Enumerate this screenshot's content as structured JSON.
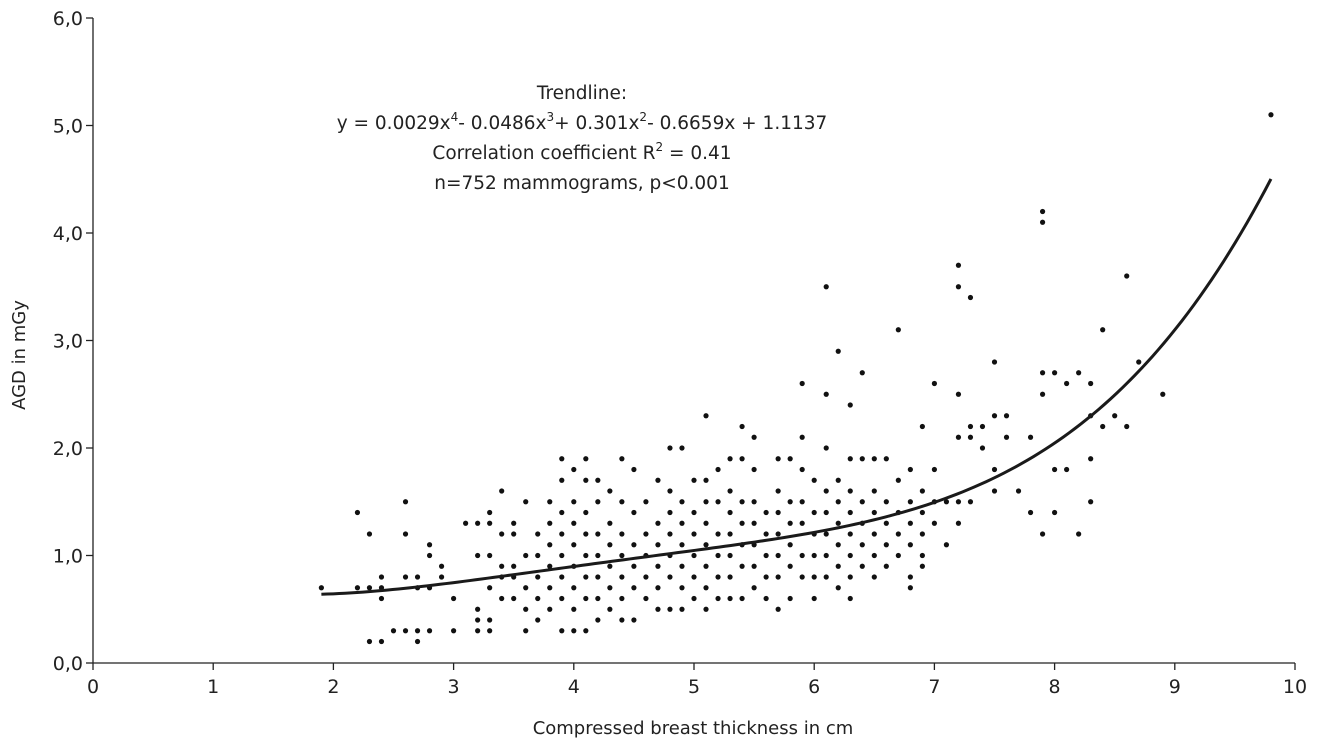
{
  "chart_data": {
    "type": "scatter",
    "xlabel": "Compressed breast thickness in cm",
    "ylabel": "AGD in mGy",
    "xlim": [
      0,
      10
    ],
    "ylim": [
      0,
      6
    ],
    "x_ticks": [
      "0",
      "1",
      "2",
      "3",
      "4",
      "5",
      "6",
      "7",
      "8",
      "9",
      "10"
    ],
    "y_ticks": [
      "0,0",
      "1,0",
      "2,0",
      "3,0",
      "4,0",
      "5,0",
      "6,0"
    ],
    "grid": false,
    "annotation": {
      "line1": "Trendline:",
      "eq_parts": [
        "y = 0.0029x",
        "4",
        "- 0.0486x",
        "3",
        "+ 0.301x",
        "2",
        "- 0.6659x + 1.1137"
      ],
      "r2_prefix": "Correlation coefficient R",
      "r2_sup": "2",
      "r2_suffix": " = 0.41",
      "line4": "n=752 mammograms, p<0.001"
    },
    "trendline": {
      "type": "polynomial",
      "coefficients": {
        "a4": 0.0029,
        "a3": -0.0486,
        "a2": 0.301,
        "a1": -0.6659,
        "a0": 1.1137
      },
      "x_range": [
        1.9,
        9.8
      ]
    },
    "points": [
      [
        1.9,
        0.7
      ],
      [
        2.2,
        1.4
      ],
      [
        2.2,
        0.7
      ],
      [
        2.3,
        1.2
      ],
      [
        2.3,
        0.7
      ],
      [
        2.3,
        0.2
      ],
      [
        2.4,
        0.8
      ],
      [
        2.4,
        0.7
      ],
      [
        2.4,
        0.6
      ],
      [
        2.4,
        0.2
      ],
      [
        2.5,
        0.3
      ],
      [
        2.6,
        1.5
      ],
      [
        2.6,
        1.2
      ],
      [
        2.6,
        0.8
      ],
      [
        2.6,
        0.3
      ],
      [
        2.7,
        0.8
      ],
      [
        2.7,
        0.7
      ],
      [
        2.7,
        0.3
      ],
      [
        2.7,
        0.2
      ],
      [
        2.8,
        1.1
      ],
      [
        2.8,
        1.0
      ],
      [
        2.8,
        0.7
      ],
      [
        2.8,
        0.3
      ],
      [
        2.9,
        0.9
      ],
      [
        2.9,
        0.8
      ],
      [
        3.0,
        0.6
      ],
      [
        3.0,
        0.3
      ],
      [
        3.1,
        1.3
      ],
      [
        3.2,
        1.3
      ],
      [
        3.2,
        1.0
      ],
      [
        3.2,
        0.5
      ],
      [
        3.2,
        0.4
      ],
      [
        3.2,
        0.3
      ],
      [
        3.3,
        1.4
      ],
      [
        3.3,
        1.3
      ],
      [
        3.3,
        1.0
      ],
      [
        3.3,
        0.7
      ],
      [
        3.3,
        0.4
      ],
      [
        3.3,
        0.3
      ],
      [
        3.4,
        1.6
      ],
      [
        3.4,
        1.2
      ],
      [
        3.4,
        0.9
      ],
      [
        3.4,
        0.8
      ],
      [
        3.4,
        0.6
      ],
      [
        3.5,
        1.3
      ],
      [
        3.5,
        1.2
      ],
      [
        3.5,
        0.9
      ],
      [
        3.5,
        0.8
      ],
      [
        3.5,
        0.6
      ],
      [
        3.6,
        1.5
      ],
      [
        3.6,
        1.0
      ],
      [
        3.6,
        0.7
      ],
      [
        3.6,
        0.5
      ],
      [
        3.6,
        0.3
      ],
      [
        3.7,
        1.2
      ],
      [
        3.7,
        1.0
      ],
      [
        3.7,
        0.8
      ],
      [
        3.7,
        0.6
      ],
      [
        3.7,
        0.4
      ],
      [
        3.8,
        1.5
      ],
      [
        3.8,
        1.3
      ],
      [
        3.8,
        1.1
      ],
      [
        3.8,
        0.9
      ],
      [
        3.8,
        0.7
      ],
      [
        3.8,
        0.5
      ],
      [
        3.9,
        1.9
      ],
      [
        3.9,
        1.7
      ],
      [
        3.9,
        1.4
      ],
      [
        3.9,
        1.2
      ],
      [
        3.9,
        1.0
      ],
      [
        3.9,
        0.8
      ],
      [
        3.9,
        0.6
      ],
      [
        3.9,
        0.3
      ],
      [
        4.0,
        1.8
      ],
      [
        4.0,
        1.5
      ],
      [
        4.0,
        1.3
      ],
      [
        4.0,
        1.1
      ],
      [
        4.0,
        0.9
      ],
      [
        4.0,
        0.7
      ],
      [
        4.0,
        0.5
      ],
      [
        4.0,
        0.3
      ],
      [
        4.1,
        1.9
      ],
      [
        4.1,
        1.7
      ],
      [
        4.1,
        1.4
      ],
      [
        4.1,
        1.2
      ],
      [
        4.1,
        1.0
      ],
      [
        4.1,
        0.8
      ],
      [
        4.1,
        0.6
      ],
      [
        4.1,
        0.3
      ],
      [
        4.2,
        1.7
      ],
      [
        4.2,
        1.5
      ],
      [
        4.2,
        1.2
      ],
      [
        4.2,
        1.0
      ],
      [
        4.2,
        0.8
      ],
      [
        4.2,
        0.6
      ],
      [
        4.2,
        0.4
      ],
      [
        4.3,
        1.6
      ],
      [
        4.3,
        1.3
      ],
      [
        4.3,
        1.1
      ],
      [
        4.3,
        0.9
      ],
      [
        4.3,
        0.7
      ],
      [
        4.3,
        0.5
      ],
      [
        4.4,
        1.9
      ],
      [
        4.4,
        1.5
      ],
      [
        4.4,
        1.2
      ],
      [
        4.4,
        1.0
      ],
      [
        4.4,
        0.8
      ],
      [
        4.4,
        0.6
      ],
      [
        4.4,
        0.4
      ],
      [
        4.5,
        1.8
      ],
      [
        4.5,
        1.4
      ],
      [
        4.5,
        1.1
      ],
      [
        4.5,
        0.9
      ],
      [
        4.5,
        0.7
      ],
      [
        4.5,
        0.4
      ],
      [
        4.6,
        1.5
      ],
      [
        4.6,
        1.2
      ],
      [
        4.6,
        1.0
      ],
      [
        4.6,
        0.8
      ],
      [
        4.6,
        0.6
      ],
      [
        4.7,
        1.7
      ],
      [
        4.7,
        1.3
      ],
      [
        4.7,
        1.1
      ],
      [
        4.7,
        0.9
      ],
      [
        4.7,
        0.7
      ],
      [
        4.7,
        0.5
      ],
      [
        4.8,
        2.0
      ],
      [
        4.8,
        1.6
      ],
      [
        4.8,
        1.4
      ],
      [
        4.8,
        1.2
      ],
      [
        4.8,
        1.0
      ],
      [
        4.8,
        0.8
      ],
      [
        4.8,
        0.5
      ],
      [
        4.9,
        2.0
      ],
      [
        4.9,
        1.5
      ],
      [
        4.9,
        1.3
      ],
      [
        4.9,
        1.1
      ],
      [
        4.9,
        0.9
      ],
      [
        4.9,
        0.7
      ],
      [
        4.9,
        0.5
      ],
      [
        5.0,
        1.7
      ],
      [
        5.0,
        1.4
      ],
      [
        5.0,
        1.2
      ],
      [
        5.0,
        1.0
      ],
      [
        5.0,
        0.8
      ],
      [
        5.0,
        0.6
      ],
      [
        5.1,
        2.3
      ],
      [
        5.1,
        1.7
      ],
      [
        5.1,
        1.5
      ],
      [
        5.1,
        1.3
      ],
      [
        5.1,
        1.1
      ],
      [
        5.1,
        0.9
      ],
      [
        5.1,
        0.7
      ],
      [
        5.1,
        0.5
      ],
      [
        5.2,
        1.8
      ],
      [
        5.2,
        1.5
      ],
      [
        5.2,
        1.2
      ],
      [
        5.2,
        1.0
      ],
      [
        5.2,
        0.8
      ],
      [
        5.2,
        0.6
      ],
      [
        5.3,
        1.9
      ],
      [
        5.3,
        1.6
      ],
      [
        5.3,
        1.4
      ],
      [
        5.3,
        1.2
      ],
      [
        5.3,
        1.0
      ],
      [
        5.3,
        0.8
      ],
      [
        5.3,
        0.6
      ],
      [
        5.4,
        2.2
      ],
      [
        5.4,
        1.9
      ],
      [
        5.4,
        1.5
      ],
      [
        5.4,
        1.3
      ],
      [
        5.4,
        1.1
      ],
      [
        5.4,
        0.9
      ],
      [
        5.4,
        0.6
      ],
      [
        5.5,
        2.1
      ],
      [
        5.5,
        1.8
      ],
      [
        5.5,
        1.5
      ],
      [
        5.5,
        1.3
      ],
      [
        5.5,
        1.1
      ],
      [
        5.5,
        0.9
      ],
      [
        5.5,
        0.7
      ],
      [
        5.6,
        1.4
      ],
      [
        5.6,
        1.2
      ],
      [
        5.6,
        1.0
      ],
      [
        5.6,
        0.8
      ],
      [
        5.6,
        0.6
      ],
      [
        5.7,
        1.9
      ],
      [
        5.7,
        1.6
      ],
      [
        5.7,
        1.4
      ],
      [
        5.7,
        1.2
      ],
      [
        5.7,
        1.0
      ],
      [
        5.7,
        0.8
      ],
      [
        5.7,
        0.5
      ],
      [
        5.8,
        1.9
      ],
      [
        5.8,
        1.5
      ],
      [
        5.8,
        1.3
      ],
      [
        5.8,
        1.1
      ],
      [
        5.8,
        0.9
      ],
      [
        5.8,
        0.6
      ],
      [
        5.9,
        2.6
      ],
      [
        5.9,
        2.1
      ],
      [
        5.9,
        1.8
      ],
      [
        5.9,
        1.5
      ],
      [
        5.9,
        1.3
      ],
      [
        5.9,
        1.0
      ],
      [
        5.9,
        0.8
      ],
      [
        6.0,
        1.7
      ],
      [
        6.0,
        1.4
      ],
      [
        6.0,
        1.2
      ],
      [
        6.0,
        1.0
      ],
      [
        6.0,
        0.8
      ],
      [
        6.0,
        0.6
      ],
      [
        6.1,
        3.5
      ],
      [
        6.1,
        2.5
      ],
      [
        6.1,
        2.0
      ],
      [
        6.1,
        1.6
      ],
      [
        6.1,
        1.4
      ],
      [
        6.1,
        1.2
      ],
      [
        6.1,
        1.0
      ],
      [
        6.1,
        0.8
      ],
      [
        6.2,
        2.9
      ],
      [
        6.2,
        1.7
      ],
      [
        6.2,
        1.5
      ],
      [
        6.2,
        1.3
      ],
      [
        6.2,
        1.1
      ],
      [
        6.2,
        0.9
      ],
      [
        6.2,
        0.7
      ],
      [
        6.3,
        2.4
      ],
      [
        6.3,
        1.9
      ],
      [
        6.3,
        1.6
      ],
      [
        6.3,
        1.4
      ],
      [
        6.3,
        1.2
      ],
      [
        6.3,
        1.0
      ],
      [
        6.3,
        0.8
      ],
      [
        6.3,
        0.6
      ],
      [
        6.4,
        2.7
      ],
      [
        6.4,
        1.9
      ],
      [
        6.4,
        1.5
      ],
      [
        6.4,
        1.3
      ],
      [
        6.4,
        1.1
      ],
      [
        6.4,
        0.9
      ],
      [
        6.5,
        1.9
      ],
      [
        6.5,
        1.6
      ],
      [
        6.5,
        1.4
      ],
      [
        6.5,
        1.2
      ],
      [
        6.5,
        1.0
      ],
      [
        6.5,
        0.8
      ],
      [
        6.6,
        1.9
      ],
      [
        6.6,
        1.5
      ],
      [
        6.6,
        1.3
      ],
      [
        6.6,
        1.1
      ],
      [
        6.6,
        0.9
      ],
      [
        6.7,
        3.1
      ],
      [
        6.7,
        1.7
      ],
      [
        6.7,
        1.4
      ],
      [
        6.7,
        1.2
      ],
      [
        6.7,
        1.0
      ],
      [
        6.8,
        1.8
      ],
      [
        6.8,
        1.5
      ],
      [
        6.8,
        1.3
      ],
      [
        6.8,
        1.1
      ],
      [
        6.8,
        0.8
      ],
      [
        6.8,
        0.7
      ],
      [
        6.9,
        2.2
      ],
      [
        6.9,
        1.6
      ],
      [
        6.9,
        1.4
      ],
      [
        6.9,
        1.2
      ],
      [
        6.9,
        1.0
      ],
      [
        6.9,
        0.9
      ],
      [
        7.0,
        2.6
      ],
      [
        7.0,
        1.8
      ],
      [
        7.0,
        1.5
      ],
      [
        7.0,
        1.3
      ],
      [
        7.1,
        1.5
      ],
      [
        7.1,
        1.1
      ],
      [
        7.2,
        3.7
      ],
      [
        7.2,
        3.5
      ],
      [
        7.2,
        2.5
      ],
      [
        7.2,
        2.1
      ],
      [
        7.2,
        1.5
      ],
      [
        7.2,
        1.3
      ],
      [
        7.3,
        3.4
      ],
      [
        7.3,
        2.2
      ],
      [
        7.3,
        2.1
      ],
      [
        7.3,
        1.5
      ],
      [
        7.4,
        2.2
      ],
      [
        7.4,
        2.0
      ],
      [
        7.5,
        2.8
      ],
      [
        7.5,
        2.3
      ],
      [
        7.5,
        1.8
      ],
      [
        7.5,
        1.6
      ],
      [
        7.6,
        2.3
      ],
      [
        7.6,
        2.1
      ],
      [
        7.7,
        1.6
      ],
      [
        7.8,
        2.1
      ],
      [
        7.8,
        1.4
      ],
      [
        7.9,
        4.2
      ],
      [
        7.9,
        4.1
      ],
      [
        7.9,
        2.7
      ],
      [
        7.9,
        2.5
      ],
      [
        7.9,
        1.2
      ],
      [
        8.0,
        2.7
      ],
      [
        8.0,
        1.8
      ],
      [
        8.0,
        1.4
      ],
      [
        8.1,
        2.6
      ],
      [
        8.1,
        1.8
      ],
      [
        8.2,
        2.7
      ],
      [
        8.2,
        1.2
      ],
      [
        8.3,
        2.6
      ],
      [
        8.3,
        2.3
      ],
      [
        8.3,
        1.9
      ],
      [
        8.3,
        1.5
      ],
      [
        8.4,
        3.1
      ],
      [
        8.4,
        2.2
      ],
      [
        8.5,
        2.3
      ],
      [
        8.6,
        3.6
      ],
      [
        8.6,
        2.2
      ],
      [
        8.7,
        2.8
      ],
      [
        8.9,
        2.5
      ],
      [
        9.8,
        5.1
      ]
    ]
  }
}
